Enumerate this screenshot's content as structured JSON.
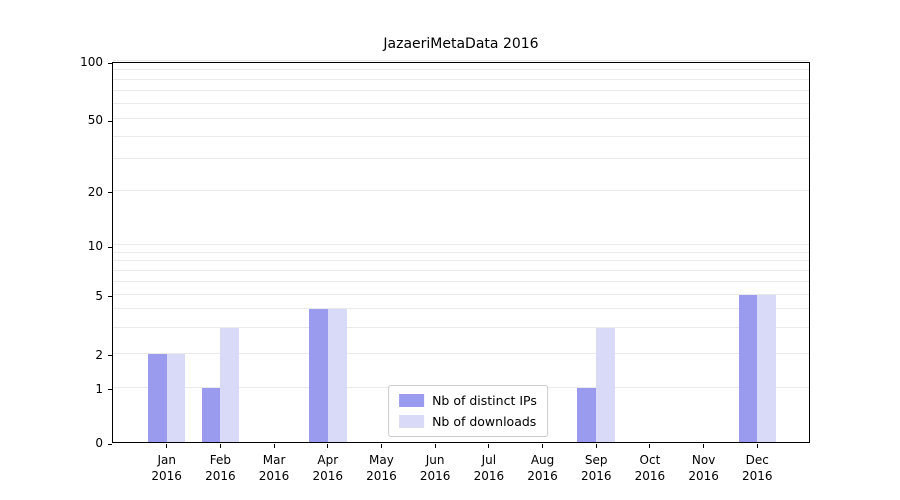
{
  "title": "JazaeriMetaData 2016",
  "chart_data": {
    "type": "bar",
    "title": "JazaeriMetaData 2016",
    "categories": [
      "Jan",
      "Feb",
      "Mar",
      "Apr",
      "May",
      "Jun",
      "Jul",
      "Aug",
      "Sep",
      "Oct",
      "Nov",
      "Dec"
    ],
    "category_year": "2016",
    "series": [
      {
        "name": "Nb of distinct IPs",
        "color": "#9a9aee",
        "values": [
          2,
          1,
          0,
          4,
          0,
          0,
          0,
          0,
          1,
          0,
          0,
          5
        ]
      },
      {
        "name": "Nb of downloads",
        "color": "#d9d9f8",
        "values": [
          2,
          3,
          0,
          4,
          0,
          0,
          0,
          0,
          3,
          0,
          0,
          5
        ]
      }
    ],
    "ylabel": "",
    "xlabel": "",
    "y_ticks": [
      0,
      1,
      2,
      5,
      10,
      20,
      50,
      100
    ],
    "y_tick_labels": [
      "0",
      "1",
      "2",
      "5",
      "10",
      "20",
      "50",
      "100"
    ],
    "gridline_values": [
      1,
      2,
      3,
      4,
      5,
      6,
      7,
      8,
      9,
      10,
      20,
      30,
      40,
      50,
      60,
      70,
      80,
      90,
      100
    ],
    "y_scale": {
      "type": "symlog",
      "anchors": [
        [
          0,
          0
        ],
        [
          1,
          0.142
        ],
        [
          2,
          0.231
        ],
        [
          5,
          0.387
        ],
        [
          10,
          0.516
        ],
        [
          20,
          0.659
        ],
        [
          50,
          0.847
        ],
        [
          100,
          1.0
        ]
      ]
    },
    "x_range": [
      -1,
      12
    ],
    "bar_width_fraction": 0.35,
    "grid": true,
    "grid_color": "#e9e9e9",
    "legend": {
      "position": "lower-center",
      "entries": [
        "Nb of distinct IPs",
        "Nb of downloads"
      ]
    }
  }
}
